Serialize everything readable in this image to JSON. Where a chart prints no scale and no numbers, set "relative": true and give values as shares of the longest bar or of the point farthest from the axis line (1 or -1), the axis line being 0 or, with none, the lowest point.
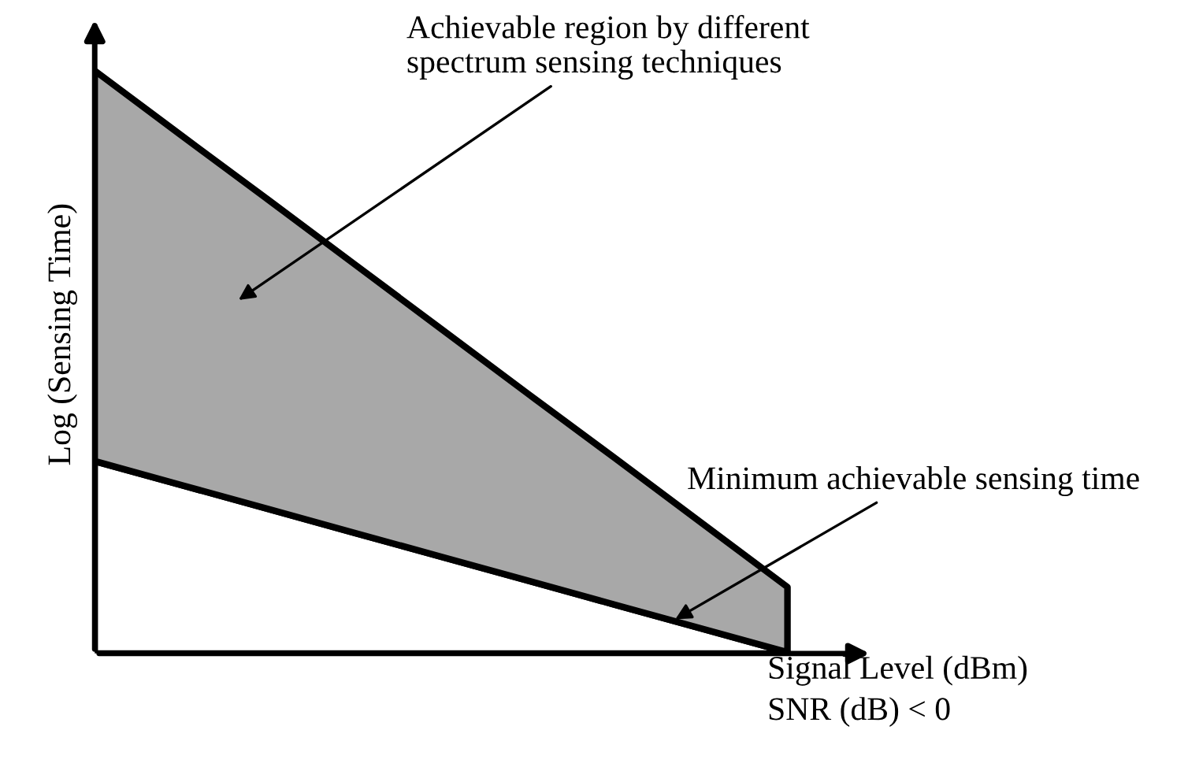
{
  "chart_data": {
    "type": "area",
    "relative": true,
    "stacked": true,
    "xlabel": "Signal Level (dBm)\nSNR (dB) < 0",
    "ylabel": "Log (Sensing Time)",
    "categories": [
      null,
      null,
      null,
      null,
      null,
      null,
      null,
      null,
      null
    ],
    "series": [
      {
        "color": "#ffffff",
        "values": [
          0.33,
          0.289,
          0.248,
          0.207,
          0.166,
          0.125,
          0.084,
          0.043,
          0.002
        ]
      },
      {
        "color": "#a8a8a8",
        "values": [
          0.67,
          0.6,
          0.531,
          0.461,
          0.391,
          0.321,
          0.252,
          0.182,
          0.112
        ]
      }
    ],
    "annotations": [
      "Achievable region by different\nspectrum sensing techniques",
      "Minimum achievable sensing time"
    ]
  }
}
